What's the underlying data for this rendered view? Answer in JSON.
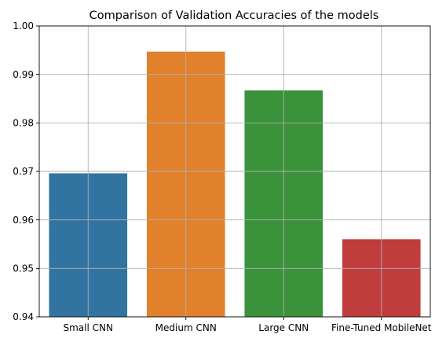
{
  "chart_data": {
    "type": "bar",
    "title": "Comparison of Validation Accuracies of the models",
    "xlabel": "",
    "ylabel": "",
    "categories": [
      "Small CNN",
      "Medium CNN",
      "Large CNN",
      "Fine-Tuned MobileNet"
    ],
    "values": [
      0.9696,
      0.9947,
      0.9867,
      0.956
    ],
    "colors": [
      "#3274a1",
      "#e1812c",
      "#3a923a",
      "#c03d3e"
    ],
    "ylim": [
      0.94,
      1.0
    ],
    "yticks": [
      "0.94",
      "0.95",
      "0.96",
      "0.97",
      "0.98",
      "0.99",
      "1.00"
    ],
    "grid": true
  }
}
